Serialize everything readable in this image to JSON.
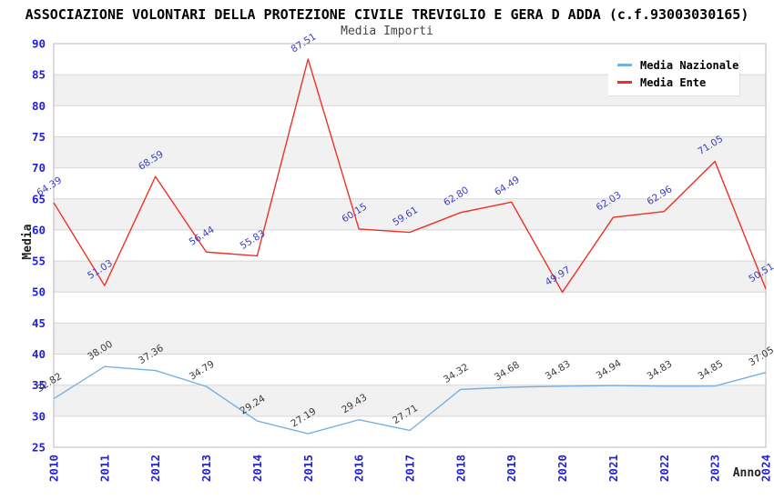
{
  "chart_data": {
    "type": "line",
    "title": "ASSOCIAZIONE VOLONTARI DELLA PROTEZIONE CIVILE TREVIGLIO E GERA D ADDA (c.f.93003030165)",
    "subtitle": "Media Importi",
    "xlabel": "Anno",
    "ylabel": "Media",
    "ylim": [
      25,
      90
    ],
    "ytick_step": 5,
    "grid": "horizontal-bands",
    "legend_position": "top-right",
    "categories": [
      "2010",
      "2011",
      "2012",
      "2013",
      "2014",
      "2015",
      "2016",
      "2017",
      "2018",
      "2019",
      "2020",
      "2021",
      "2022",
      "2023",
      "2024"
    ],
    "series": [
      {
        "name": "Media Nazionale",
        "color": "#79afe0",
        "label_color": "#3a3a3a",
        "values": [
          32.82,
          38.0,
          37.36,
          34.79,
          29.24,
          27.19,
          29.43,
          27.71,
          34.32,
          34.68,
          34.83,
          34.94,
          34.83,
          34.85,
          37.05
        ]
      },
      {
        "name": "Media Ente",
        "color": "#ee3124",
        "label_color": "#3d3dc3",
        "values": [
          64.39,
          51.03,
          68.59,
          56.44,
          55.83,
          87.51,
          60.15,
          59.61,
          62.8,
          64.49,
          49.97,
          62.03,
          62.96,
          71.05,
          50.51
        ]
      }
    ],
    "colors": {
      "tick_label": "#2222d0",
      "band_alt": "#f1f1f1",
      "gridline": "#d6d6d6",
      "plot_border": "#b8b8b8"
    }
  }
}
